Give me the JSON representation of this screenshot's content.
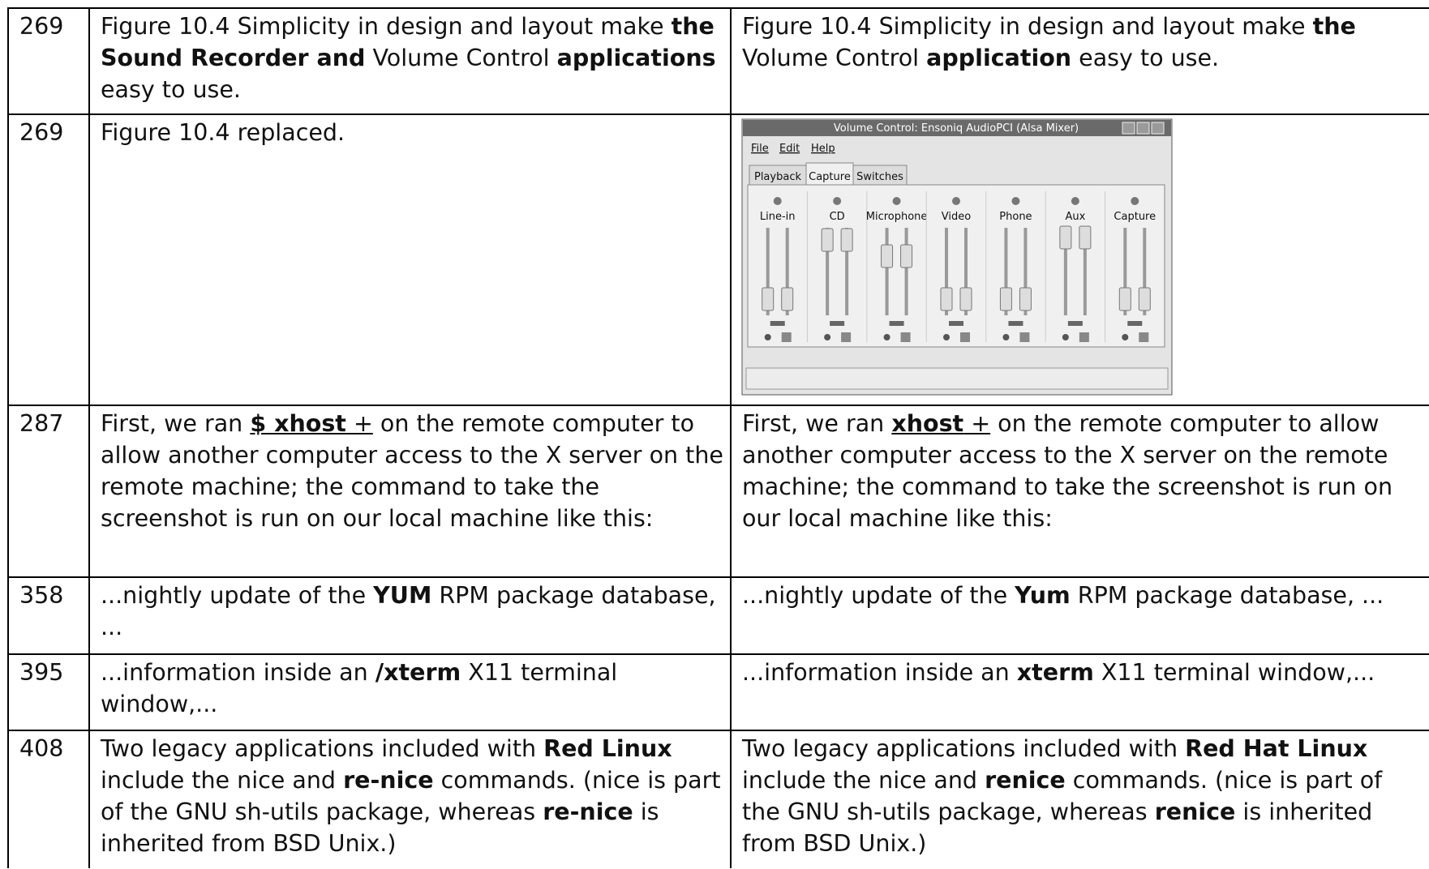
{
  "table": {
    "rows": [
      {
        "page": "269",
        "original": [
          "Figure 10.4  Simplicity in design and layout make ",
          {
            "text": "the Sound Recorder and",
            "style": "bold"
          },
          " Volume Control ",
          {
            "text": "applications",
            "style": "bold"
          },
          " easy to use."
        ],
        "corrected": [
          "Figure 10.4  Simplicity in design and layout make ",
          {
            "text": "the",
            "style": "bold"
          },
          " Volume Control ",
          {
            "text": "application",
            "style": "bold"
          },
          " easy to use."
        ]
      },
      {
        "page": "269",
        "original": [
          "Figure 10.4 replaced."
        ],
        "figure": {
          "title": "Volume Control: Ensoniq AudioPCI (Alsa Mixer)",
          "menu": [
            "File",
            "Edit",
            "Help"
          ],
          "tabs": [
            "Playback",
            "Capture",
            "Switches"
          ],
          "channels": [
            "Line-in",
            "CD",
            "Microphone",
            "Video",
            "Phone",
            "Aux",
            "Capture"
          ]
        }
      },
      {
        "page": "287",
        "original": [
          "First, we ran ",
          {
            "text": "$ xhost",
            "style": "bold-underline"
          },
          {
            "text": " +",
            "style": "underline"
          },
          " on the remote computer to allow another computer access to the X server on the remote machine; the command to take the screenshot is run on our local machine like this:"
        ],
        "corrected": [
          "First, we ran ",
          {
            "text": "xhost",
            "style": "bold-underline"
          },
          {
            "text": " +",
            "style": "underline"
          },
          " on the remote computer to allow another computer access to the X server on the remote machine; the command to take the screenshot is run on our local machine like this:"
        ]
      },
      {
        "page": "358",
        "original": [
          "...nightly update of the ",
          {
            "text": "YUM",
            "style": "bold"
          },
          " RPM package database, ..."
        ],
        "corrected": [
          "...nightly update of the ",
          {
            "text": "Yum",
            "style": "bold"
          },
          " RPM package database, ..."
        ]
      },
      {
        "page": "395",
        "original": [
          "...information inside an ",
          {
            "text": "/xterm",
            "style": "bold"
          },
          " X11 terminal window,..."
        ],
        "corrected": [
          "...information inside an ",
          {
            "text": "xterm",
            "style": "bold"
          },
          " X11 terminal window,..."
        ]
      },
      {
        "page": "408",
        "original": [
          "Two legacy applications included with ",
          {
            "text": "Red Linux",
            "style": "bold"
          },
          " include the nice and ",
          {
            "text": "re-nice",
            "style": "bold"
          },
          " commands. (nice is part of the GNU sh-utils package, whereas ",
          {
            "text": "re-nice",
            "style": "bold"
          },
          " is inherited from BSD Unix.)"
        ],
        "corrected": [
          "Two legacy applications included with ",
          {
            "text": "Red Hat Linux",
            "style": "bold"
          },
          " include the nice and ",
          {
            "text": "renice",
            "style": "bold"
          },
          " commands. (nice is part of the GNU sh-utils package, whereas ",
          {
            "text": "renice",
            "style": "bold"
          },
          " is inherited from BSD Unix.)"
        ]
      }
    ]
  }
}
